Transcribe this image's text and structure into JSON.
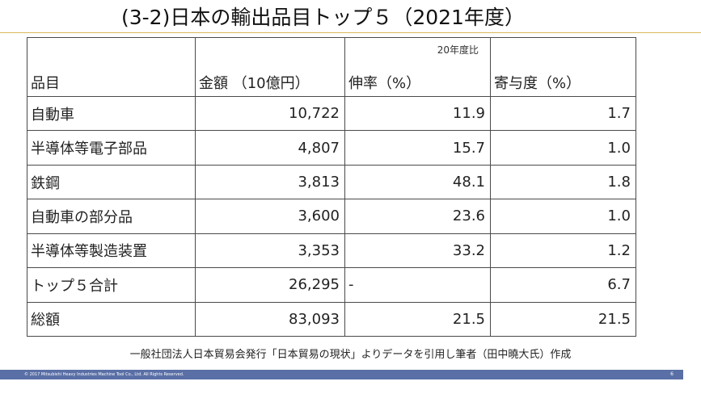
{
  "slide": {
    "title": "(3-2)日本の輸出品目トップ５（2021年度）"
  },
  "table": {
    "header_note": "20年度比",
    "headers": [
      "品目",
      "金額 （10億円）",
      "伸率（%）",
      "寄与度（%）"
    ],
    "rows": [
      {
        "item": "自動車",
        "amount": "10,722",
        "growth": "11.9",
        "contribution": "1.7"
      },
      {
        "item": "半導体等電子部品",
        "amount": "4,807",
        "growth": "15.7",
        "contribution": "1.0"
      },
      {
        "item": "鉄鋼",
        "amount": "3,813",
        "growth": "48.1",
        "contribution": "1.8"
      },
      {
        "item": "自動車の部分品",
        "amount": "3,600",
        "growth": "23.6",
        "contribution": "1.0"
      },
      {
        "item": "半導体等製造装置",
        "amount": "3,353",
        "growth": "33.2",
        "contribution": "1.2"
      },
      {
        "item": "トップ５合計",
        "amount": "26,295",
        "growth": "-",
        "contribution": "6.7"
      },
      {
        "item": "総額",
        "amount": "83,093",
        "growth": "21.5",
        "contribution": "21.5"
      }
    ]
  },
  "source_note": "一般社団法人日本貿易会発行「日本貿易の現状」よりデータを引用し筆者（田中曉大氏）作成",
  "footer": {
    "copyright": "© 2017 Mitsubishi Heavy Industries Machine Tool Co., Ltd.   All Rights Reserved.",
    "page_number": "6"
  },
  "colors": {
    "title_rule": "#d9b75a",
    "footer_bar": "#5a6fa6"
  }
}
